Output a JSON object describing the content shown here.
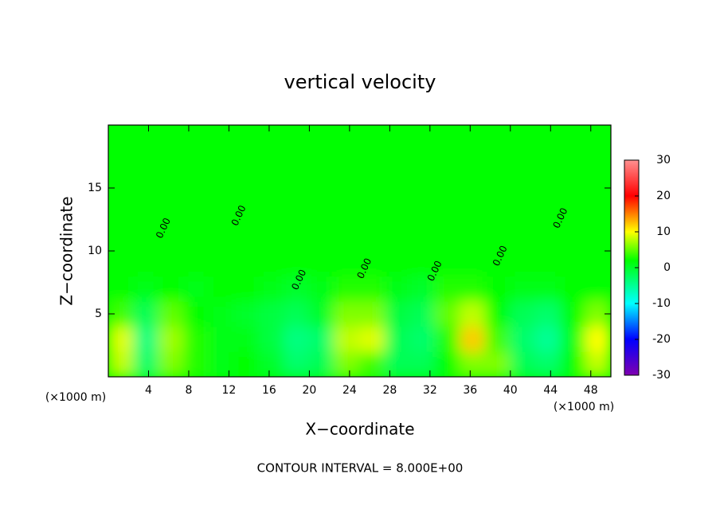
{
  "chart_data": {
    "type": "heatmap",
    "title": "vertical velocity",
    "x_label": "X−coordinate",
    "y_label": "Z−coordinate",
    "x_unit_labels": [
      "(×1000 m)",
      "(×1000 m)"
    ],
    "note": "CONTOUR INTERVAL = 8.000E+00",
    "xlim": [
      0,
      50
    ],
    "ylim": [
      0,
      20
    ],
    "xticks": [
      4,
      8,
      12,
      16,
      20,
      24,
      28,
      32,
      36,
      40,
      44,
      48
    ],
    "yticks": [
      5,
      10,
      15
    ],
    "x_edges": [
      0,
      2.5,
      5,
      7.5,
      10,
      12.5,
      15,
      17.5,
      20,
      22.5,
      25,
      27.5,
      30,
      32.5,
      35,
      37.5,
      40,
      42.5,
      45,
      47.5,
      50
    ],
    "y_edges": [
      0,
      2,
      4,
      6,
      8,
      20
    ],
    "values": [
      [
        8,
        -3,
        6,
        3,
        1,
        2,
        0,
        -3,
        -2,
        6,
        4,
        -2,
        -2,
        2,
        6,
        6,
        -2,
        -3,
        2,
        8
      ],
      [
        9,
        -4,
        7,
        3,
        1,
        1,
        -1,
        -4,
        -3,
        8,
        9,
        -2,
        -3,
        3,
        12,
        4,
        -3,
        -5,
        1,
        10
      ],
      [
        4,
        -2,
        5,
        2,
        1,
        0,
        -1,
        -2,
        0,
        6,
        6,
        -1,
        -2,
        5,
        8,
        2,
        -2,
        -3,
        2,
        6
      ],
      [
        2,
        1,
        2,
        1,
        2,
        2,
        1,
        0,
        1,
        3,
        3,
        1,
        0,
        3,
        3,
        2,
        1,
        1,
        2,
        2
      ],
      [
        2,
        2,
        2,
        2,
        2,
        2,
        2,
        2,
        2,
        2,
        2,
        2,
        2,
        2,
        2,
        2,
        2,
        2,
        2,
        2
      ]
    ],
    "colorscale": [
      {
        "value": -30,
        "color": "#8000b0"
      },
      {
        "value": -20,
        "color": "#0000ff"
      },
      {
        "value": -10,
        "color": "#00ffff"
      },
      {
        "value": 2,
        "color": "#00ff00"
      },
      {
        "value": 10,
        "color": "#ffff00"
      },
      {
        "value": 20,
        "color": "#ff0000"
      },
      {
        "value": 30,
        "color": "#ff9090"
      }
    ],
    "clim": [
      -30,
      30
    ],
    "cticks": [
      -30,
      -20,
      -10,
      0,
      10,
      20,
      30
    ],
    "contour_labels": [
      {
        "label": "0.00",
        "x": 5.5,
        "z": 11.8
      },
      {
        "label": "0.00",
        "x": 13,
        "z": 12.8
      },
      {
        "label": "0.00",
        "x": 19,
        "z": 7.7
      },
      {
        "label": "0.00",
        "x": 25.5,
        "z": 8.6
      },
      {
        "label": "0.00",
        "x": 32.5,
        "z": 8.4
      },
      {
        "label": "0.00",
        "x": 39,
        "z": 9.6
      },
      {
        "label": "0.00",
        "x": 45,
        "z": 12.6
      }
    ]
  }
}
